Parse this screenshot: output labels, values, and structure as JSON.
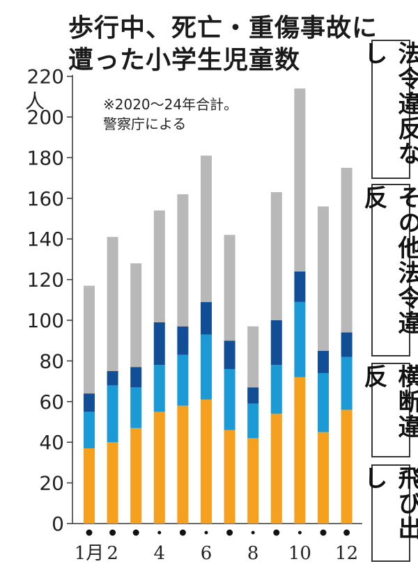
{
  "title_lines": [
    "歩行中、死亡・重傷事故に",
    "遭った小学生児童数"
  ],
  "note_lines": [
    "※2020〜24年合計。",
    "警察庁による"
  ],
  "chart_data": {
    "type": "bar",
    "stacked": true,
    "title": "歩行中、死亡・重傷事故に遭った小学生児童数",
    "ylabel": "人",
    "ylim": [
      0,
      220
    ],
    "yticks": [
      0,
      20,
      40,
      60,
      80,
      100,
      120,
      140,
      160,
      180,
      200,
      220
    ],
    "categories": [
      "1月",
      "2",
      "3",
      "4",
      "5",
      "6",
      "7",
      "8",
      "9",
      "10",
      "11",
      "12"
    ],
    "xtick_labels": [
      "1月",
      "2",
      "",
      "4",
      "",
      "6",
      "",
      "8",
      "",
      "10",
      "",
      "12"
    ],
    "series": [
      {
        "name": "飛び出し",
        "color": "#f5a01e",
        "values": [
          37,
          40,
          47,
          55,
          58,
          61,
          46,
          42,
          54,
          72,
          45,
          56
        ]
      },
      {
        "name": "横断違反",
        "color": "#1b9ad6",
        "values": [
          18,
          28,
          20,
          23,
          25,
          32,
          30,
          17,
          24,
          37,
          29,
          26
        ]
      },
      {
        "name": "その他法令違反",
        "color": "#124e96",
        "values": [
          9,
          7,
          10,
          21,
          14,
          16,
          14,
          8,
          22,
          15,
          11,
          12
        ]
      },
      {
        "name": "法令違反なし",
        "color": "#b8b8b8",
        "values": [
          53,
          66,
          51,
          55,
          65,
          72,
          52,
          30,
          63,
          90,
          71,
          81
        ]
      }
    ],
    "grid": false
  }
}
